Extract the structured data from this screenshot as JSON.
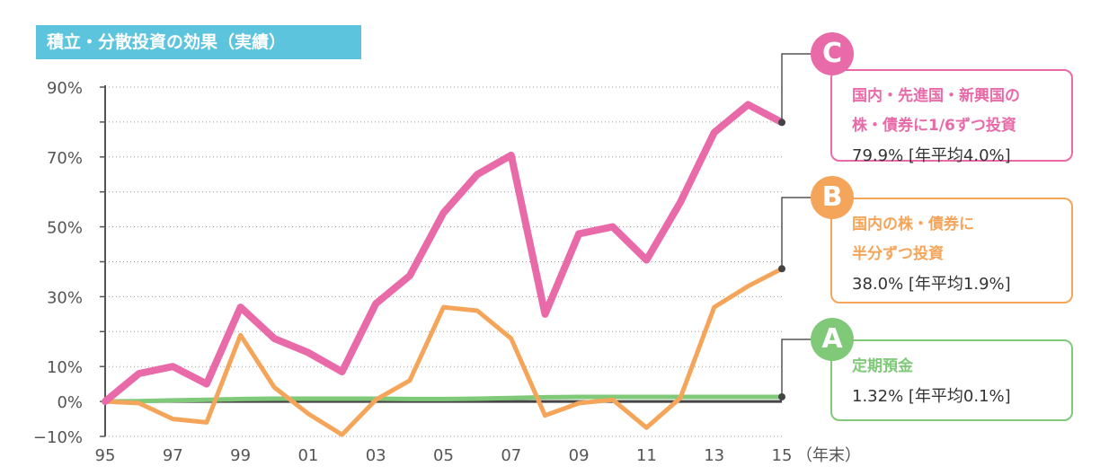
{
  "title": "積立・分散投資の効果（実績）",
  "colors": {
    "title_bg": "#5cc4dd",
    "c": "#e96aa8",
    "b": "#f5a55a",
    "a": "#7fc979",
    "axis": "#555555"
  },
  "x_unit_label": "（年末）",
  "callouts": {
    "c": {
      "letter": "C",
      "line1": "国内・先進国・新興国の",
      "line2": "株・債券に1/6ずつ投資",
      "value": "79.9% [年平均4.0%]"
    },
    "b": {
      "letter": "B",
      "line1": "国内の株・債券に",
      "line2": "半分ずつ投資",
      "value": "38.0% [年平均1.9%]"
    },
    "a": {
      "letter": "A",
      "line1": "定期預金",
      "value": "1.32% [年平均0.1%]"
    }
  },
  "chart_data": {
    "type": "line",
    "title": "積立・分散投資の効果（実績）",
    "xlabel": "（年末）",
    "ylabel": "",
    "ylim": [
      -10,
      90
    ],
    "yticks": [
      -10,
      0,
      10,
      30,
      50,
      70,
      90
    ],
    "ytick_labels": [
      "−10%",
      "0%",
      "10%",
      "30%",
      "50%",
      "70%",
      "90%"
    ],
    "x": [
      "95",
      "96",
      "97",
      "98",
      "99",
      "00",
      "01",
      "02",
      "03",
      "04",
      "05",
      "06",
      "07",
      "08",
      "09",
      "10",
      "11",
      "12",
      "13",
      "14",
      "15"
    ],
    "xtick_labels": [
      "95",
      "97",
      "99",
      "01",
      "03",
      "05",
      "07",
      "09",
      "11",
      "13",
      "15"
    ],
    "grid": true,
    "series": [
      {
        "name": "C",
        "color": "#e96aa8",
        "values": [
          0,
          8,
          10,
          5,
          27,
          18,
          14,
          8.5,
          28,
          36,
          54,
          65,
          70.5,
          25,
          48,
          50,
          40.5,
          57,
          77,
          85,
          79.9
        ]
      },
      {
        "name": "B",
        "color": "#f5a55a",
        "values": [
          0,
          -0.5,
          -5,
          -6,
          19,
          4,
          -3.5,
          -9.5,
          0.5,
          6,
          27,
          26,
          18,
          -4,
          -0.5,
          0.5,
          -7.5,
          1,
          27,
          33,
          38.0
        ]
      },
      {
        "name": "A",
        "color": "#7fc979",
        "values": [
          0,
          0.1,
          0.3,
          0.5,
          0.7,
          0.8,
          0.8,
          0.8,
          0.8,
          0.7,
          0.7,
          0.8,
          1.0,
          1.2,
          1.3,
          1.3,
          1.3,
          1.3,
          1.3,
          1.3,
          1.32
        ]
      }
    ]
  }
}
